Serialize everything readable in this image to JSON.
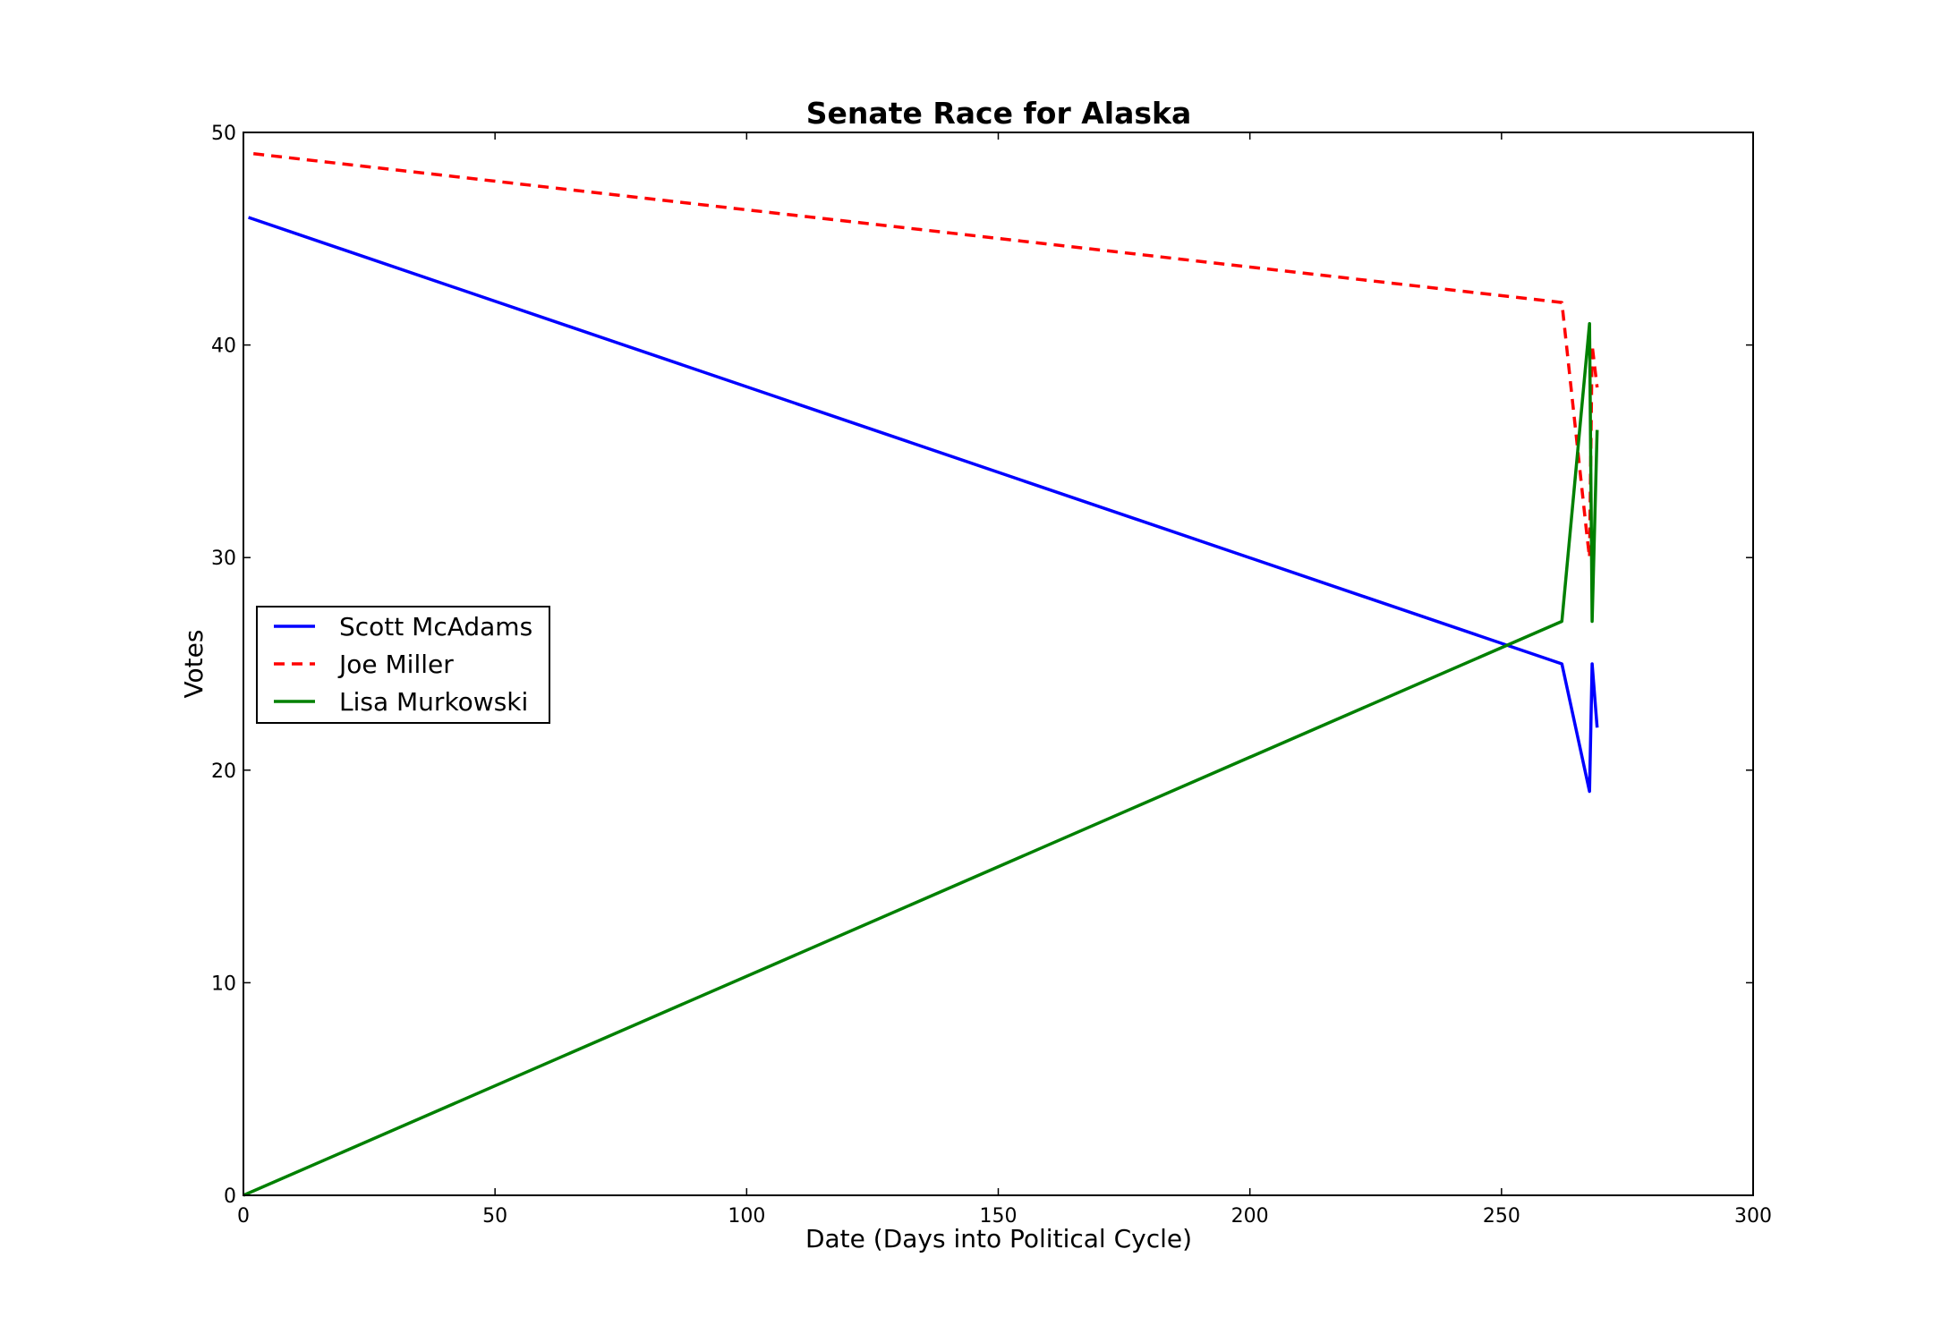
{
  "chart_data": {
    "type": "line",
    "title": "Senate Race for Alaska",
    "xlabel": "Date (Days into Political Cycle)",
    "ylabel": "Votes",
    "xlim": [
      0,
      300
    ],
    "ylim": [
      0,
      50
    ],
    "xticks": [
      0,
      50,
      100,
      150,
      200,
      250,
      300
    ],
    "yticks": [
      0,
      10,
      20,
      30,
      40,
      50
    ],
    "grid": false,
    "legend_position": "center-left",
    "series": [
      {
        "name": "Scott McAdams",
        "color": "#0000ff",
        "style": "solid",
        "x": [
          1,
          262,
          267.5,
          268,
          269
        ],
        "y": [
          46,
          25,
          19,
          25,
          22
        ]
      },
      {
        "name": "Joe Miller",
        "color": "#ff0000",
        "style": "dashed",
        "x": [
          2,
          262,
          267,
          267.5,
          268,
          269
        ],
        "y": [
          49,
          42,
          31,
          30,
          40,
          38
        ]
      },
      {
        "name": "Lisa Murkowski",
        "color": "#008000",
        "style": "solid",
        "x": [
          0,
          262,
          267.5,
          268,
          269
        ],
        "y": [
          0,
          27,
          41,
          27,
          36
        ]
      }
    ]
  }
}
